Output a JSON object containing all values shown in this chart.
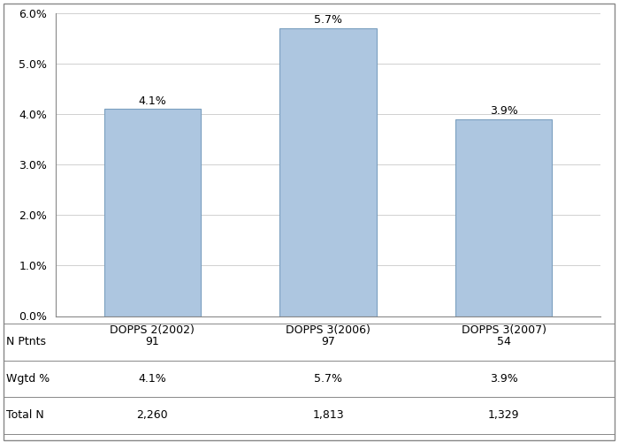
{
  "categories": [
    "DOPPS 2(2002)",
    "DOPPS 3(2006)",
    "DOPPS 3(2007)"
  ],
  "values": [
    4.1,
    5.7,
    3.9
  ],
  "bar_color": "#adc6e0",
  "bar_edgecolor": "#7a9fbf",
  "ylim": [
    0,
    6.0
  ],
  "yticks": [
    0.0,
    1.0,
    2.0,
    3.0,
    4.0,
    5.0,
    6.0
  ],
  "ytick_labels": [
    "0.0%",
    "1.0%",
    "2.0%",
    "3.0%",
    "4.0%",
    "5.0%",
    "6.0%"
  ],
  "bar_labels": [
    "4.1%",
    "5.7%",
    "3.9%"
  ],
  "table_row_labels": [
    "N Ptnts",
    "Wgtd %",
    "Total N"
  ],
  "table_data": [
    [
      "91",
      "97",
      "54"
    ],
    [
      "4.1%",
      "5.7%",
      "3.9%"
    ],
    [
      "2,260",
      "1,813",
      "1,329"
    ]
  ],
  "font_size": 9,
  "label_font_size": 9,
  "bg_color": "#ffffff",
  "grid_color": "#d0d0d0",
  "border_color": "#888888"
}
